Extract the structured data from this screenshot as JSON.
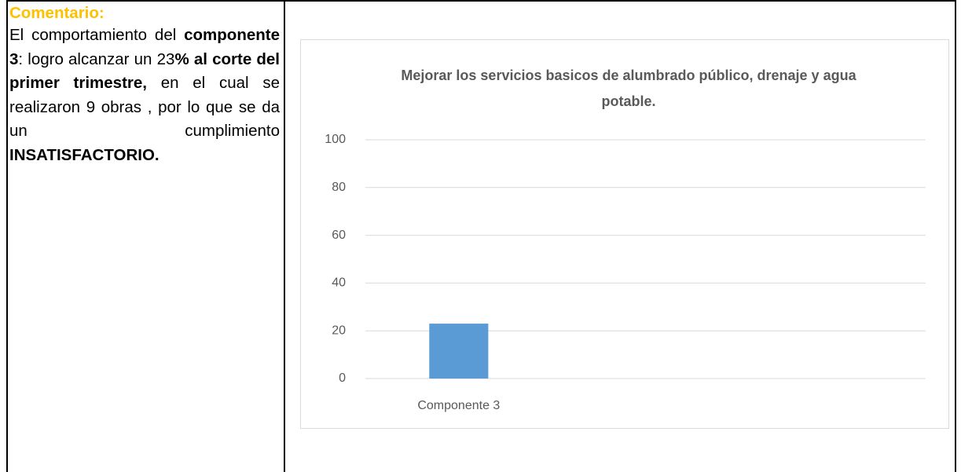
{
  "comment": {
    "heading": "Comentario:",
    "runs": [
      {
        "text": "El comportamiento del ",
        "bold": false
      },
      {
        "text": "componente 3",
        "bold": true
      },
      {
        "text": ": logro alcanzar un 23",
        "bold": false
      },
      {
        "text": "% al corte del primer trimestre,",
        "bold": true
      },
      {
        "text": " en el cual se realizaron 9 obras , por lo que se da un cumplimiento ",
        "bold": false
      },
      {
        "text": "INSATISFACTORIO.",
        "bold": true
      }
    ]
  },
  "chart_data": {
    "type": "bar",
    "title": "Mejorar los servicios basicos de alumbrado público, drenaje y agua potable.",
    "categories": [
      "Componente 3",
      null,
      null
    ],
    "values": [
      23,
      null,
      null
    ],
    "color": "#5b9bd5",
    "ylim": [
      0,
      100
    ],
    "yticks": [
      0,
      20,
      40,
      60,
      80,
      100
    ],
    "grid": true
  }
}
